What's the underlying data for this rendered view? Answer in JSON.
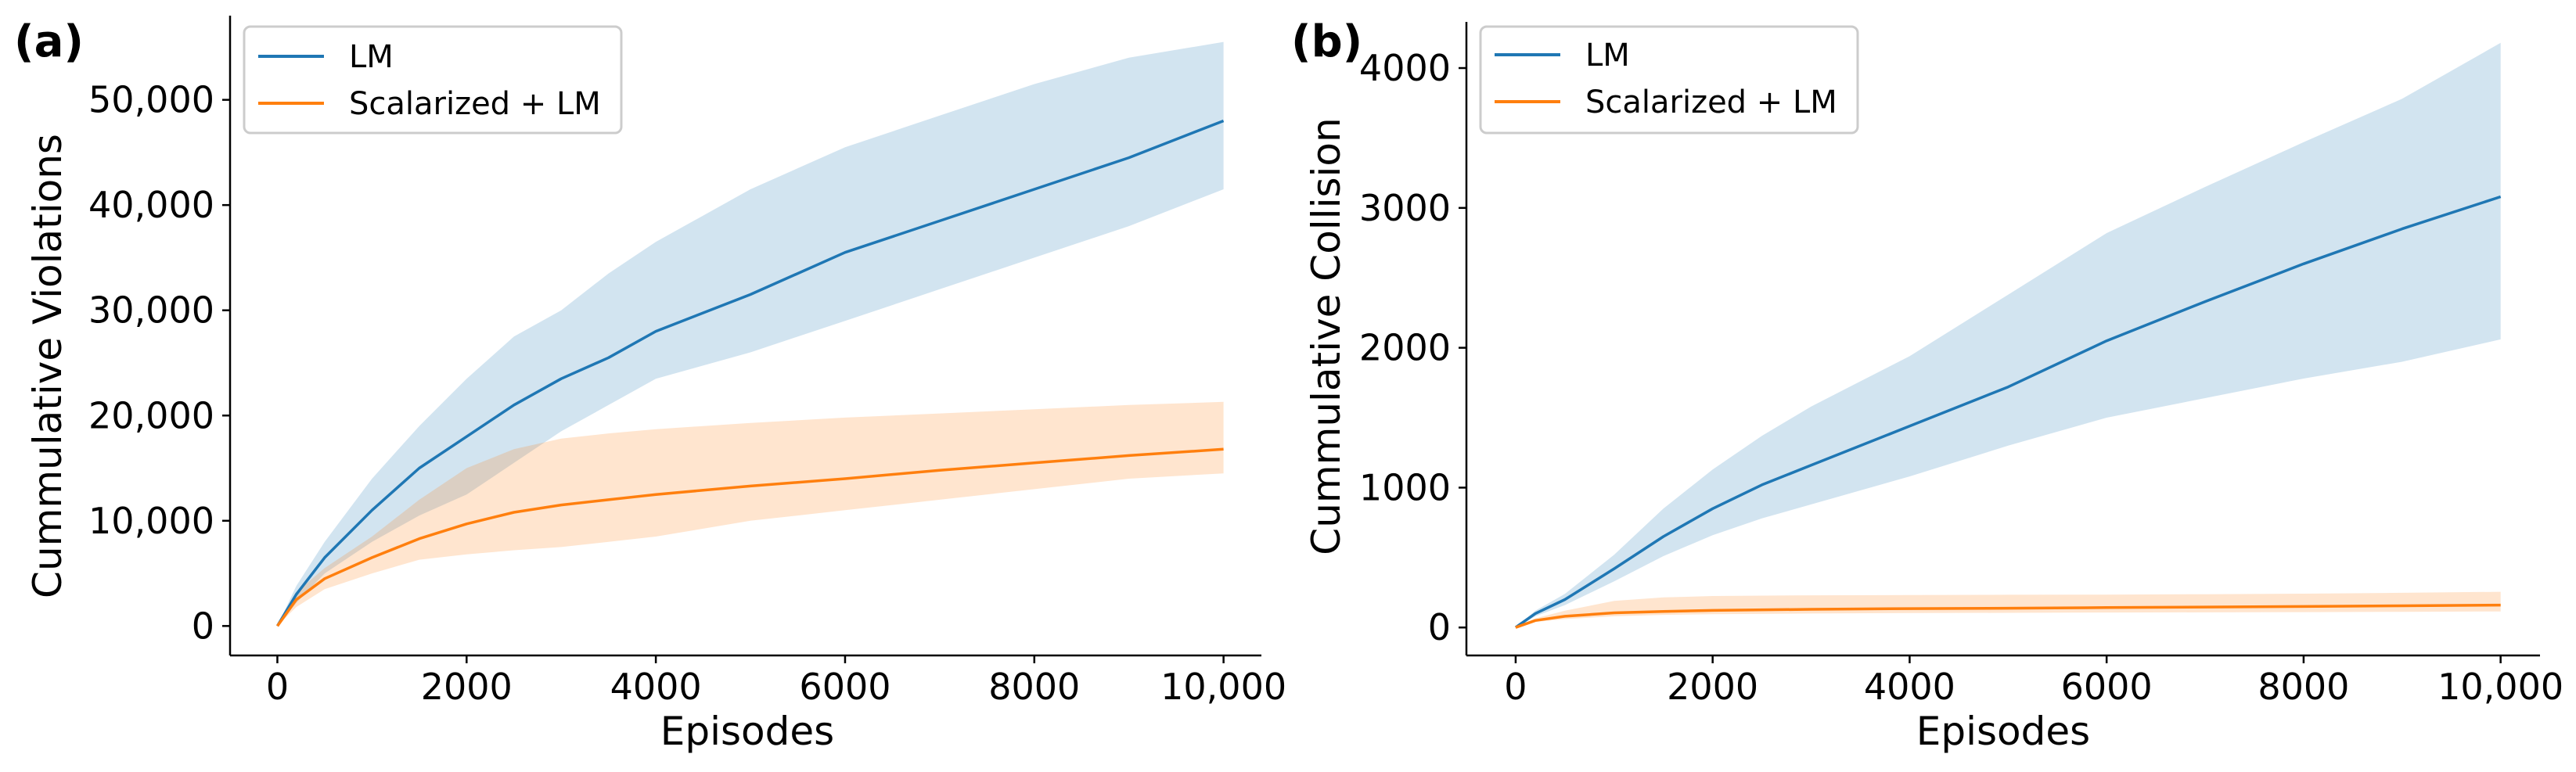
{
  "chart_data": [
    {
      "type": "line",
      "panel_label": "(a)",
      "xlabel": "Episodes",
      "ylabel": "Cummulative Violations",
      "xlim": [
        -500,
        10400
      ],
      "ylim": [
        -2800,
        58000
      ],
      "x_ticks": [
        0,
        2000,
        4000,
        6000,
        8000,
        10000
      ],
      "x_tick_labels": [
        "0",
        "2000",
        "4000",
        "6000",
        "8000",
        "10,000"
      ],
      "y_ticks": [
        0,
        10000,
        20000,
        30000,
        40000,
        50000
      ],
      "y_tick_labels": [
        "0",
        "10,000",
        "20,000",
        "30,000",
        "40,000",
        "50,000"
      ],
      "legend": {
        "location": "top-left",
        "entries": [
          "LM",
          "Scalarized + LM"
        ]
      },
      "series": [
        {
          "name": "LM",
          "color": "#1f77b4",
          "x": [
            0,
            200,
            500,
            1000,
            1500,
            2000,
            2500,
            3000,
            3500,
            4000,
            5000,
            6000,
            7000,
            8000,
            9000,
            10000
          ],
          "values": [
            0,
            3000,
            6500,
            11000,
            15000,
            18000,
            21000,
            23500,
            25500,
            28000,
            31500,
            35500,
            38500,
            41500,
            44500,
            48000
          ],
          "lower": [
            0,
            2200,
            5000,
            8000,
            10500,
            12500,
            15500,
            18500,
            21000,
            23500,
            26000,
            29000,
            32000,
            35000,
            38000,
            41500
          ],
          "upper": [
            0,
            3800,
            8000,
            14000,
            19000,
            23500,
            27500,
            30000,
            33500,
            36500,
            41500,
            45500,
            48500,
            51500,
            54000,
            55500
          ]
        },
        {
          "name": "Scalarized + LM",
          "color": "#ff7f0e",
          "x": [
            0,
            200,
            500,
            1000,
            1500,
            2000,
            2500,
            3000,
            3500,
            4000,
            5000,
            6000,
            7000,
            8000,
            9000,
            10000
          ],
          "values": [
            0,
            2500,
            4500,
            6500,
            8300,
            9700,
            10800,
            11500,
            12000,
            12500,
            13300,
            14000,
            14800,
            15500,
            16200,
            16800
          ],
          "lower": [
            0,
            1800,
            3500,
            5000,
            6300,
            6800,
            7200,
            7500,
            8000,
            8500,
            10000,
            11000,
            12000,
            13000,
            14000,
            14500
          ],
          "upper": [
            0,
            3200,
            5500,
            8500,
            12000,
            15000,
            16800,
            17800,
            18300,
            18700,
            19300,
            19800,
            20200,
            20600,
            21000,
            21300
          ]
        }
      ]
    },
    {
      "type": "line",
      "panel_label": "(b)",
      "xlabel": "Episodes",
      "ylabel": "Cummulative Collision",
      "xlim": [
        -500,
        10400
      ],
      "ylim": [
        -200,
        4330
      ],
      "x_ticks": [
        0,
        2000,
        4000,
        6000,
        8000,
        10000
      ],
      "x_tick_labels": [
        "0",
        "2000",
        "4000",
        "6000",
        "8000",
        "10,000"
      ],
      "y_ticks": [
        0,
        1000,
        2000,
        3000,
        4000
      ],
      "y_tick_labels": [
        "0",
        "1000",
        "2000",
        "3000",
        "4000"
      ],
      "legend": {
        "location": "top-left",
        "entries": [
          "LM",
          "Scalarized + LM"
        ]
      },
      "series": [
        {
          "name": "LM",
          "color": "#1f77b4",
          "x": [
            0,
            200,
            500,
            1000,
            1500,
            2000,
            2500,
            3000,
            3500,
            4000,
            5000,
            6000,
            7000,
            8000,
            9000,
            10000
          ],
          "values": [
            0,
            100,
            200,
            420,
            650,
            850,
            1020,
            1160,
            1300,
            1440,
            1720,
            2050,
            2330,
            2600,
            2850,
            3080
          ],
          "lower": [
            0,
            80,
            160,
            330,
            510,
            660,
            780,
            880,
            980,
            1080,
            1300,
            1500,
            1640,
            1780,
            1900,
            2060
          ],
          "upper": [
            0,
            120,
            240,
            520,
            850,
            1130,
            1370,
            1580,
            1760,
            1940,
            2380,
            2820,
            3150,
            3470,
            3780,
            4180
          ]
        },
        {
          "name": "Scalarized + LM",
          "color": "#ff7f0e",
          "x": [
            0,
            200,
            500,
            1000,
            1500,
            2000,
            3000,
            4000,
            5000,
            6000,
            7000,
            8000,
            9000,
            10000
          ],
          "values": [
            0,
            50,
            80,
            105,
            115,
            122,
            130,
            135,
            138,
            142,
            146,
            150,
            155,
            160
          ],
          "lower": [
            0,
            40,
            60,
            80,
            90,
            95,
            100,
            103,
            105,
            107,
            108,
            110,
            112,
            115
          ],
          "upper": [
            0,
            65,
            120,
            190,
            215,
            225,
            230,
            232,
            234,
            235,
            238,
            242,
            248,
            255
          ]
        }
      ]
    }
  ]
}
